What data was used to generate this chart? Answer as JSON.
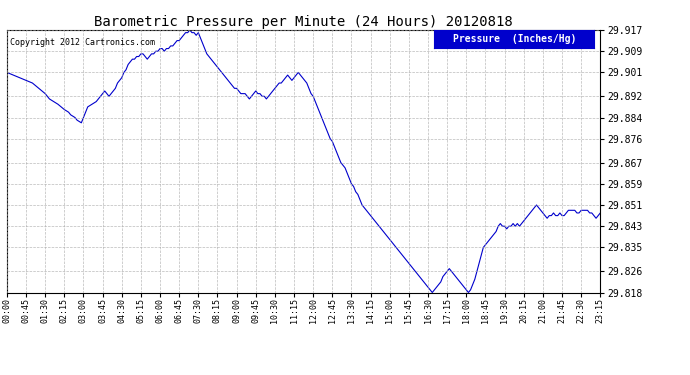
{
  "title": "Barometric Pressure per Minute (24 Hours) 20120818",
  "copyright": "Copyright 2012 Cartronics.com",
  "legend_label": "Pressure  (Inches/Hg)",
  "line_color": "#0000CC",
  "background_color": "#ffffff",
  "grid_color": "#aaaaaa",
  "ylim": [
    29.818,
    29.917
  ],
  "yticks": [
    29.818,
    29.826,
    29.835,
    29.843,
    29.851,
    29.859,
    29.867,
    29.876,
    29.884,
    29.892,
    29.901,
    29.909,
    29.917
  ],
  "xtick_labels": [
    "00:00",
    "00:45",
    "01:30",
    "02:15",
    "03:00",
    "03:45",
    "04:30",
    "05:15",
    "06:00",
    "06:45",
    "07:30",
    "08:15",
    "09:00",
    "09:45",
    "10:30",
    "11:15",
    "12:00",
    "12:45",
    "13:30",
    "14:15",
    "15:00",
    "15:45",
    "16:30",
    "17:15",
    "18:00",
    "18:45",
    "19:30",
    "20:15",
    "21:00",
    "21:45",
    "22:30",
    "23:15"
  ],
  "x_values": [
    0,
    45,
    90,
    135,
    180,
    225,
    270,
    315,
    360,
    405,
    450,
    495,
    540,
    585,
    630,
    675,
    720,
    765,
    810,
    855,
    900,
    945,
    990,
    1035,
    1080,
    1125,
    1170,
    1215,
    1260,
    1305,
    1350,
    1395
  ],
  "pressure_data": [
    [
      0,
      29.901
    ],
    [
      15,
      29.9
    ],
    [
      30,
      29.899
    ],
    [
      45,
      29.898
    ],
    [
      60,
      29.897
    ],
    [
      75,
      29.895
    ],
    [
      90,
      29.893
    ],
    [
      100,
      29.891
    ],
    [
      110,
      29.89
    ],
    [
      120,
      29.889
    ],
    [
      135,
      29.887
    ],
    [
      145,
      29.886
    ],
    [
      150,
      29.885
    ],
    [
      160,
      29.884
    ],
    [
      165,
      29.883
    ],
    [
      175,
      29.882
    ],
    [
      180,
      29.884
    ],
    [
      185,
      29.886
    ],
    [
      190,
      29.888
    ],
    [
      200,
      29.889
    ],
    [
      210,
      29.89
    ],
    [
      215,
      29.891
    ],
    [
      220,
      29.892
    ],
    [
      225,
      29.893
    ],
    [
      230,
      29.894
    ],
    [
      235,
      29.893
    ],
    [
      240,
      29.892
    ],
    [
      250,
      29.894
    ],
    [
      255,
      29.895
    ],
    [
      260,
      29.897
    ],
    [
      265,
      29.898
    ],
    [
      270,
      29.899
    ],
    [
      275,
      29.901
    ],
    [
      280,
      29.902
    ],
    [
      285,
      29.904
    ],
    [
      290,
      29.905
    ],
    [
      295,
      29.906
    ],
    [
      300,
      29.906
    ],
    [
      305,
      29.907
    ],
    [
      310,
      29.907
    ],
    [
      315,
      29.908
    ],
    [
      320,
      29.908
    ],
    [
      325,
      29.907
    ],
    [
      330,
      29.906
    ],
    [
      335,
      29.907
    ],
    [
      340,
      29.908
    ],
    [
      345,
      29.908
    ],
    [
      350,
      29.909
    ],
    [
      355,
      29.909
    ],
    [
      360,
      29.91
    ],
    [
      365,
      29.91
    ],
    [
      370,
      29.909
    ],
    [
      375,
      29.91
    ],
    [
      380,
      29.91
    ],
    [
      385,
      29.911
    ],
    [
      390,
      29.911
    ],
    [
      395,
      29.912
    ],
    [
      400,
      29.913
    ],
    [
      405,
      29.913
    ],
    [
      410,
      29.914
    ],
    [
      415,
      29.915
    ],
    [
      420,
      29.916
    ],
    [
      425,
      29.916
    ],
    [
      430,
      29.917
    ],
    [
      435,
      29.916
    ],
    [
      440,
      29.916
    ],
    [
      445,
      29.915
    ],
    [
      450,
      29.916
    ],
    [
      455,
      29.914
    ],
    [
      460,
      29.912
    ],
    [
      465,
      29.91
    ],
    [
      470,
      29.908
    ],
    [
      475,
      29.907
    ],
    [
      480,
      29.906
    ],
    [
      485,
      29.905
    ],
    [
      490,
      29.904
    ],
    [
      495,
      29.903
    ],
    [
      500,
      29.902
    ],
    [
      505,
      29.901
    ],
    [
      510,
      29.9
    ],
    [
      515,
      29.899
    ],
    [
      520,
      29.898
    ],
    [
      525,
      29.897
    ],
    [
      530,
      29.896
    ],
    [
      535,
      29.895
    ],
    [
      540,
      29.895
    ],
    [
      545,
      29.894
    ],
    [
      550,
      29.893
    ],
    [
      555,
      29.893
    ],
    [
      560,
      29.893
    ],
    [
      565,
      29.892
    ],
    [
      570,
      29.891
    ],
    [
      575,
      29.892
    ],
    [
      580,
      29.893
    ],
    [
      585,
      29.894
    ],
    [
      590,
      29.893
    ],
    [
      595,
      29.893
    ],
    [
      600,
      29.892
    ],
    [
      605,
      29.892
    ],
    [
      610,
      29.891
    ],
    [
      615,
      29.892
    ],
    [
      620,
      29.893
    ],
    [
      625,
      29.894
    ],
    [
      630,
      29.895
    ],
    [
      635,
      29.896
    ],
    [
      640,
      29.897
    ],
    [
      645,
      29.897
    ],
    [
      650,
      29.898
    ],
    [
      655,
      29.899
    ],
    [
      660,
      29.9
    ],
    [
      665,
      29.899
    ],
    [
      670,
      29.898
    ],
    [
      675,
      29.899
    ],
    [
      680,
      29.9
    ],
    [
      685,
      29.901
    ],
    [
      690,
      29.9
    ],
    [
      695,
      29.899
    ],
    [
      700,
      29.898
    ],
    [
      705,
      29.897
    ],
    [
      710,
      29.895
    ],
    [
      715,
      29.893
    ],
    [
      720,
      29.892
    ],
    [
      725,
      29.89
    ],
    [
      730,
      29.888
    ],
    [
      735,
      29.886
    ],
    [
      740,
      29.884
    ],
    [
      745,
      29.882
    ],
    [
      750,
      29.88
    ],
    [
      755,
      29.878
    ],
    [
      760,
      29.876
    ],
    [
      765,
      29.875
    ],
    [
      770,
      29.873
    ],
    [
      775,
      29.871
    ],
    [
      780,
      29.869
    ],
    [
      785,
      29.867
    ],
    [
      790,
      29.866
    ],
    [
      795,
      29.865
    ],
    [
      800,
      29.863
    ],
    [
      805,
      29.861
    ],
    [
      810,
      29.859
    ],
    [
      815,
      29.858
    ],
    [
      820,
      29.856
    ],
    [
      825,
      29.855
    ],
    [
      830,
      29.853
    ],
    [
      835,
      29.851
    ],
    [
      840,
      29.85
    ],
    [
      845,
      29.849
    ],
    [
      850,
      29.848
    ],
    [
      855,
      29.847
    ],
    [
      860,
      29.846
    ],
    [
      865,
      29.845
    ],
    [
      870,
      29.844
    ],
    [
      875,
      29.843
    ],
    [
      880,
      29.842
    ],
    [
      885,
      29.841
    ],
    [
      890,
      29.84
    ],
    [
      895,
      29.839
    ],
    [
      900,
      29.838
    ],
    [
      905,
      29.837
    ],
    [
      910,
      29.836
    ],
    [
      915,
      29.835
    ],
    [
      920,
      29.834
    ],
    [
      925,
      29.833
    ],
    [
      930,
      29.832
    ],
    [
      935,
      29.831
    ],
    [
      940,
      29.83
    ],
    [
      945,
      29.829
    ],
    [
      950,
      29.828
    ],
    [
      955,
      29.827
    ],
    [
      960,
      29.826
    ],
    [
      965,
      29.825
    ],
    [
      970,
      29.824
    ],
    [
      975,
      29.823
    ],
    [
      980,
      29.822
    ],
    [
      985,
      29.821
    ],
    [
      990,
      29.82
    ],
    [
      995,
      29.819
    ],
    [
      1000,
      29.818
    ],
    [
      1005,
      29.819
    ],
    [
      1010,
      29.82
    ],
    [
      1015,
      29.821
    ],
    [
      1020,
      29.822
    ],
    [
      1025,
      29.824
    ],
    [
      1030,
      29.825
    ],
    [
      1035,
      29.826
    ],
    [
      1040,
      29.827
    ],
    [
      1045,
      29.826
    ],
    [
      1050,
      29.825
    ],
    [
      1055,
      29.824
    ],
    [
      1060,
      29.823
    ],
    [
      1065,
      29.822
    ],
    [
      1070,
      29.821
    ],
    [
      1075,
      29.82
    ],
    [
      1080,
      29.819
    ],
    [
      1085,
      29.818
    ],
    [
      1090,
      29.819
    ],
    [
      1095,
      29.821
    ],
    [
      1100,
      29.823
    ],
    [
      1105,
      29.826
    ],
    [
      1110,
      29.829
    ],
    [
      1115,
      29.832
    ],
    [
      1120,
      29.835
    ],
    [
      1125,
      29.836
    ],
    [
      1130,
      29.837
    ],
    [
      1135,
      29.838
    ],
    [
      1140,
      29.839
    ],
    [
      1145,
      29.84
    ],
    [
      1150,
      29.841
    ],
    [
      1155,
      29.843
    ],
    [
      1160,
      29.844
    ],
    [
      1165,
      29.843
    ],
    [
      1170,
      29.843
    ],
    [
      1175,
      29.842
    ],
    [
      1180,
      29.843
    ],
    [
      1185,
      29.843
    ],
    [
      1190,
      29.844
    ],
    [
      1195,
      29.843
    ],
    [
      1200,
      29.844
    ],
    [
      1205,
      29.843
    ],
    [
      1210,
      29.844
    ],
    [
      1215,
      29.845
    ],
    [
      1220,
      29.846
    ],
    [
      1225,
      29.847
    ],
    [
      1230,
      29.848
    ],
    [
      1235,
      29.849
    ],
    [
      1240,
      29.85
    ],
    [
      1245,
      29.851
    ],
    [
      1250,
      29.85
    ],
    [
      1255,
      29.849
    ],
    [
      1260,
      29.848
    ],
    [
      1265,
      29.847
    ],
    [
      1270,
      29.846
    ],
    [
      1275,
      29.847
    ],
    [
      1280,
      29.847
    ],
    [
      1285,
      29.848
    ],
    [
      1290,
      29.847
    ],
    [
      1295,
      29.847
    ],
    [
      1300,
      29.848
    ],
    [
      1305,
      29.847
    ],
    [
      1310,
      29.847
    ],
    [
      1315,
      29.848
    ],
    [
      1320,
      29.849
    ],
    [
      1325,
      29.849
    ],
    [
      1330,
      29.849
    ],
    [
      1335,
      29.849
    ],
    [
      1340,
      29.848
    ],
    [
      1345,
      29.848
    ],
    [
      1350,
      29.849
    ],
    [
      1355,
      29.849
    ],
    [
      1360,
      29.849
    ],
    [
      1365,
      29.849
    ],
    [
      1370,
      29.848
    ],
    [
      1375,
      29.848
    ],
    [
      1380,
      29.847
    ],
    [
      1385,
      29.846
    ],
    [
      1390,
      29.847
    ],
    [
      1395,
      29.848
    ]
  ]
}
